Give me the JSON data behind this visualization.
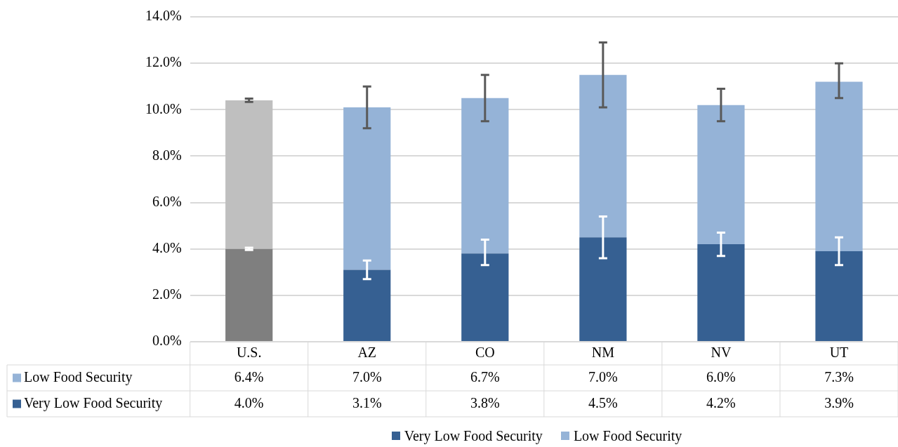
{
  "chart_data": {
    "type": "bar",
    "stacked": true,
    "categories": [
      "U.S.",
      "AZ",
      "CO",
      "NM",
      "NV",
      "UT"
    ],
    "ylim": [
      0,
      14
    ],
    "yticks": [
      {
        "value": 0,
        "label": "0.0%"
      },
      {
        "value": 2,
        "label": "2.0%"
      },
      {
        "value": 4,
        "label": "4.0%"
      },
      {
        "value": 6,
        "label": "6.0%"
      },
      {
        "value": 8,
        "label": "8.0%"
      },
      {
        "value": 10,
        "label": "10.0%"
      },
      {
        "value": 12,
        "label": "12.0%"
      },
      {
        "value": 14,
        "label": "14.0%"
      }
    ],
    "grid": "y",
    "legend": "bottom",
    "series": [
      {
        "name": "Very Low Food Security",
        "color": "#366092",
        "colors": [
          "#7f7f7f",
          "#366092",
          "#366092",
          "#366092",
          "#366092",
          "#366092"
        ],
        "values": [
          4.0,
          3.1,
          3.8,
          4.5,
          4.2,
          3.9
        ],
        "errors": [
          [
            3.95,
            4.05
          ],
          [
            2.7,
            3.5
          ],
          [
            3.3,
            4.4
          ],
          [
            3.6,
            5.4
          ],
          [
            3.7,
            4.7
          ],
          [
            3.3,
            4.5
          ]
        ],
        "value_labels": [
          "4.0%",
          "3.1%",
          "3.8%",
          "4.5%",
          "4.2%",
          "3.9%"
        ]
      },
      {
        "name": "Low Food Security",
        "color": "#95b3d7",
        "colors": [
          "#bfbfbf",
          "#95b3d7",
          "#95b3d7",
          "#95b3d7",
          "#95b3d7",
          "#95b3d7"
        ],
        "values": [
          6.4,
          7.0,
          6.7,
          7.0,
          6.0,
          7.3
        ],
        "errors": [
          [
            10.33,
            10.48
          ],
          [
            9.2,
            11.0
          ],
          [
            9.5,
            11.5
          ],
          [
            10.1,
            12.9
          ],
          [
            9.5,
            10.9
          ],
          [
            10.5,
            12.0
          ]
        ],
        "value_labels": [
          "6.4%",
          "7.0%",
          "6.7%",
          "7.0%",
          "6.0%",
          "7.3%"
        ]
      }
    ]
  }
}
